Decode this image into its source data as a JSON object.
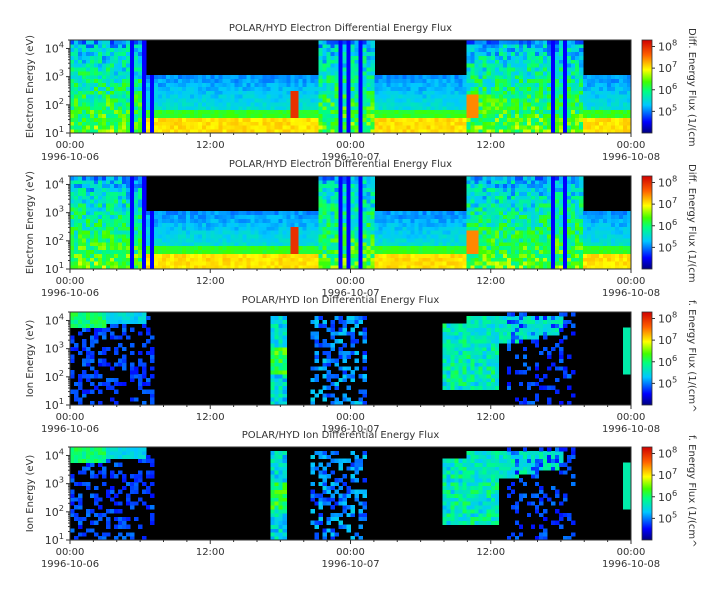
{
  "chart_data": [
    {
      "type": "heatmap",
      "title": "POLAR/HYD  Electron Differential Energy Flux",
      "ylabel": "Electron Energy (eV)",
      "colorbar_label": "Diff. Energy Flux (1/(cm",
      "y_ticks": [
        "10^1",
        "10^2",
        "10^3",
        "10^4"
      ],
      "ylim": [
        10,
        20000
      ],
      "yscale": "log",
      "x_ticks": [
        "00:00",
        "12:00",
        "00:00",
        "12:00",
        "00:00"
      ],
      "x_dates": [
        "1996-10-06",
        "",
        "1996-10-07",
        "",
        "1996-10-08"
      ],
      "xlim": [
        "1996-10-06 00:00",
        "1996-10-08 00:00"
      ],
      "colorbar_ticks": [
        "10^5",
        "10^6",
        "10^7",
        "10^8"
      ],
      "clim": [
        10000,
        200000000
      ],
      "colormap": "jet"
    },
    {
      "type": "heatmap",
      "title": "POLAR/HYD  Electron Differential Energy Flux",
      "ylabel": "Electron Energy (eV)",
      "colorbar_label": "Diff. Energy Flux (1/(cm",
      "y_ticks": [
        "10^1",
        "10^2",
        "10^3",
        "10^4"
      ],
      "ylim": [
        10,
        20000
      ],
      "yscale": "log",
      "x_ticks": [
        "00:00",
        "12:00",
        "00:00",
        "12:00",
        "00:00"
      ],
      "x_dates": [
        "1996-10-06",
        "",
        "1996-10-07",
        "",
        "1996-10-08"
      ],
      "xlim": [
        "1996-10-06 00:00",
        "1996-10-08 00:00"
      ],
      "colorbar_ticks": [
        "10^5",
        "10^6",
        "10^7",
        "10^8"
      ],
      "clim": [
        10000,
        200000000
      ],
      "colormap": "jet"
    },
    {
      "type": "heatmap",
      "title": "POLAR/HYD  Ion Differential Energy Flux",
      "ylabel": "Ion Energy (eV)",
      "colorbar_label": "f. Energy Flux (1/(cm^",
      "y_ticks": [
        "10^1",
        "10^2",
        "10^3",
        "10^4"
      ],
      "ylim": [
        10,
        20000
      ],
      "yscale": "log",
      "x_ticks": [
        "00:00",
        "12:00",
        "00:00",
        "12:00",
        "00:00"
      ],
      "x_dates": [
        "1996-10-06",
        "",
        "1996-10-07",
        "",
        "1996-10-08"
      ],
      "xlim": [
        "1996-10-06 00:00",
        "1996-10-08 00:00"
      ],
      "colorbar_ticks": [
        "10^5",
        "10^6",
        "10^7",
        "10^8"
      ],
      "clim": [
        10000,
        200000000
      ],
      "colormap": "jet"
    },
    {
      "type": "heatmap",
      "title": "POLAR/HYD  Ion Differential Energy Flux",
      "ylabel": "Ion Energy (eV)",
      "colorbar_label": "f. Energy Flux (1/(cm^",
      "y_ticks": [
        "10^1",
        "10^2",
        "10^3",
        "10^4"
      ],
      "ylim": [
        10,
        20000
      ],
      "yscale": "log",
      "x_ticks": [
        "00:00",
        "12:00",
        "00:00",
        "12:00",
        "00:00"
      ],
      "x_dates": [
        "1996-10-06",
        "",
        "1996-10-07",
        "",
        "1996-10-08"
      ],
      "xlim": [
        "1996-10-06 00:00",
        "1996-10-08 00:00"
      ],
      "colorbar_ticks": [
        "10^5",
        "10^6",
        "10^7",
        "10^8"
      ],
      "clim": [
        10000,
        200000000
      ],
      "colormap": "jet"
    }
  ],
  "colors": {
    "background": "#ffffff",
    "plot_background": "#000000",
    "text": "#333333"
  }
}
